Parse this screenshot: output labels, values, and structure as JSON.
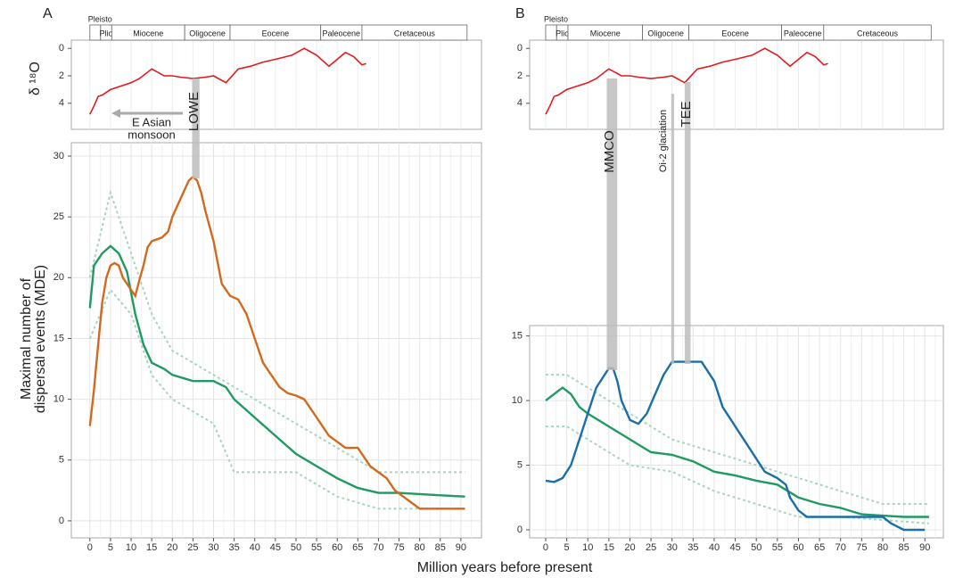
{
  "x_label": "Million years before present",
  "chart_data": [
    {
      "type": "line",
      "label": "A",
      "ylabel": [
        "Maximal number of",
        "dispersal events (MDE)"
      ],
      "xlim": [
        -4.5,
        95
      ],
      "ylim": [
        -1.4,
        31.1
      ],
      "xticks": [
        0,
        5,
        10,
        15,
        20,
        25,
        30,
        35,
        40,
        45,
        50,
        55,
        60,
        65,
        70,
        75,
        80,
        85,
        90
      ],
      "yticks": [
        0,
        5,
        10,
        15,
        20,
        25,
        30
      ],
      "grid": true,
      "series": [
        {
          "color": "#a8d5bf",
          "style": "dashed",
          "x": [
            0,
            5,
            10,
            15,
            20,
            25,
            30,
            40,
            50,
            60,
            70,
            91
          ],
          "values": [
            20,
            27,
            22,
            17,
            14,
            13,
            12,
            10,
            8,
            6,
            4,
            4
          ]
        },
        {
          "color": "#a8d5bf",
          "style": "dashed",
          "x": [
            0,
            5,
            10,
            15,
            20,
            25,
            30,
            35,
            40,
            50,
            60,
            70,
            91
          ],
          "values": [
            15,
            19,
            17,
            12,
            10,
            9,
            8,
            4,
            4,
            4,
            2,
            1,
            1
          ]
        },
        {
          "color": "#1f9a60",
          "style": "solid",
          "x": [
            0,
            1,
            3,
            5,
            7,
            9,
            11,
            13,
            15,
            18,
            20,
            25,
            30,
            33,
            35,
            40,
            45,
            50,
            55,
            60,
            65,
            70,
            75,
            80,
            85,
            91
          ],
          "values": [
            17.5,
            21,
            22,
            22.6,
            22,
            20.5,
            17,
            14.5,
            13,
            12.5,
            12,
            11.5,
            11.5,
            11,
            10,
            8.5,
            7,
            5.5,
            4.5,
            3.5,
            2.7,
            2.3,
            2.3,
            2.2,
            2.1,
            2
          ]
        },
        {
          "color": "#d2691e",
          "style": "solid",
          "x": [
            0,
            1,
            2,
            3,
            4,
            5,
            6,
            7,
            8,
            9,
            10,
            11,
            12,
            13,
            14,
            15,
            17.5,
            19,
            20,
            22,
            24,
            25,
            26,
            27,
            28,
            30,
            32,
            33,
            34,
            36,
            38,
            40,
            42,
            44,
            46,
            48,
            50,
            52,
            54,
            56,
            58,
            60,
            62,
            65,
            66,
            68,
            70,
            72,
            74,
            76,
            78,
            80,
            85,
            91
          ],
          "values": [
            7.8,
            10.8,
            14.5,
            18,
            20,
            21,
            21.2,
            21,
            20,
            19.5,
            19,
            18.5,
            19.8,
            21,
            22.5,
            23,
            23.3,
            23.8,
            25,
            26.5,
            28,
            28.3,
            28,
            27,
            25.5,
            23,
            19.5,
            19,
            18.5,
            18.2,
            17,
            15,
            13,
            12,
            11,
            10.5,
            10.3,
            10,
            9,
            8,
            7,
            6.5,
            6,
            6,
            5.5,
            4.5,
            4,
            3.5,
            2.5,
            2,
            1.5,
            1,
            1,
            1
          ]
        }
      ],
      "annotations": [
        {
          "text": "LOWE",
          "x": [
            24.8,
            26.6
          ]
        },
        {
          "text": [
            "E Asian",
            "monsoon"
          ]
        }
      ],
      "inset": {
        "type": "line",
        "ylabel": "δ ¹⁸O",
        "ylim": [
          -0.6,
          5.9
        ],
        "inverted": true,
        "yticks": [
          0,
          2,
          4
        ],
        "grid": true,
        "series": [
          {
            "color": "#e31a1c",
            "x": [
              0,
              1,
              2,
              3,
              5,
              7,
              10,
              12,
              15,
              18,
              20,
              22,
              25,
              28,
              30,
              33,
              36,
              39,
              42,
              45,
              49,
              52,
              55,
              58,
              60,
              62,
              64,
              66,
              67
            ],
            "values": [
              4.8,
              4.2,
              3.5,
              3.4,
              3,
              2.8,
              2.5,
              2.2,
              1.5,
              2,
              2,
              2.1,
              2.2,
              2.1,
              2,
              2.5,
              1.5,
              1.3,
              1,
              0.8,
              0.5,
              0,
              0.5,
              1.3,
              0.8,
              0.3,
              0.6,
              1.2,
              1.1
            ]
          }
        ],
        "epochs": [
          {
            "label": "Pleisto",
            "start": 0,
            "end": 2.6
          },
          {
            "label": "Plio",
            "start": 2.6,
            "end": 5.3
          },
          {
            "label": "Miocene",
            "start": 5.3,
            "end": 23
          },
          {
            "label": "Oligocene",
            "start": 23,
            "end": 34
          },
          {
            "label": "Eocene",
            "start": 34,
            "end": 56
          },
          {
            "label": "Paleocene",
            "start": 56,
            "end": 66
          },
          {
            "label": "Cretaceous",
            "start": 66,
            "end": 91.5
          }
        ]
      }
    },
    {
      "type": "line",
      "label": "B",
      "xlim": [
        -3.8,
        94.4
      ],
      "ylim": [
        -0.62,
        15.8
      ],
      "xticks": [
        0,
        5,
        10,
        15,
        20,
        25,
        30,
        35,
        40,
        45,
        50,
        55,
        60,
        65,
        70,
        75,
        80,
        85,
        90
      ],
      "yticks": [
        0,
        5,
        10,
        15
      ],
      "grid": true,
      "series": [
        {
          "color": "#a8d5bf",
          "style": "dashed",
          "x": [
            0,
            5,
            10,
            20,
            30,
            40,
            50,
            60,
            70,
            80,
            91
          ],
          "values": [
            12,
            12,
            11,
            9,
            7,
            6,
            5,
            4,
            3,
            2,
            2
          ]
        },
        {
          "color": "#a8d5bf",
          "style": "dashed",
          "x": [
            0,
            5,
            10,
            20,
            30,
            40,
            50,
            60,
            70,
            91
          ],
          "values": [
            8,
            8,
            7,
            5,
            4.5,
            3,
            2,
            1,
            1,
            0.5
          ]
        },
        {
          "color": "#1f9a60",
          "style": "solid",
          "x": [
            0,
            2,
            4,
            6,
            8,
            10,
            15,
            20,
            25,
            30,
            35,
            40,
            45,
            50,
            55,
            60,
            65,
            70,
            75,
            80,
            85,
            91
          ],
          "values": [
            10,
            10.5,
            11,
            10.5,
            9.5,
            9,
            8,
            7,
            6,
            5.8,
            5.3,
            4.5,
            4.2,
            3.8,
            3.5,
            2.5,
            2,
            1.7,
            1.2,
            1.1,
            1,
            1
          ]
        },
        {
          "color": "#1a6fa8",
          "style": "solid",
          "x": [
            0,
            2,
            4,
            6,
            8,
            10,
            12,
            14,
            15,
            16,
            17,
            18,
            20,
            22,
            24,
            26,
            28,
            30,
            32,
            35,
            37,
            38,
            40,
            42,
            44,
            46,
            48,
            50,
            52,
            55,
            57,
            58,
            60,
            62,
            70,
            80,
            82,
            85,
            90
          ],
          "values": [
            3.8,
            3.7,
            4,
            5,
            7,
            9,
            11,
            12,
            12.5,
            12.5,
            11.5,
            10,
            8.5,
            8.2,
            9,
            10.5,
            12,
            13,
            13,
            13,
            13,
            12.5,
            11.5,
            9.5,
            8.5,
            7.5,
            6.5,
            5.5,
            4.5,
            4,
            3.5,
            2.5,
            1.5,
            1,
            1,
            1,
            0.5,
            0,
            0
          ]
        }
      ],
      "annotations": [
        {
          "text": "MMCO",
          "x": [
            14.5,
            17
          ]
        },
        {
          "text": "Oi-2 glaciation",
          "x": [
            29.8,
            30.5
          ]
        },
        {
          "text": "TEE",
          "x": [
            33,
            34.4
          ]
        }
      ],
      "inset": {
        "type": "line",
        "ylim": [
          -0.6,
          5.9
        ],
        "inverted": true,
        "yticks": [
          0,
          2,
          4
        ],
        "grid": true,
        "series": [
          {
            "color": "#e31a1c",
            "x": [
              0,
              1,
              2,
              3,
              5,
              7,
              10,
              12,
              15,
              18,
              20,
              22,
              25,
              28,
              30,
              33,
              36,
              39,
              42,
              45,
              49,
              52,
              55,
              58,
              60,
              62,
              64,
              66,
              67
            ],
            "values": [
              4.8,
              4.2,
              3.5,
              3.4,
              3,
              2.8,
              2.5,
              2.2,
              1.5,
              2,
              2,
              2.1,
              2.2,
              2.1,
              2,
              2.5,
              1.5,
              1.3,
              1,
              0.8,
              0.5,
              0,
              0.5,
              1.3,
              0.8,
              0.3,
              0.6,
              1.2,
              1.1
            ]
          }
        ],
        "epochs": [
          {
            "label": "Pleisto",
            "start": 0,
            "end": 2.6
          },
          {
            "label": "Plio",
            "start": 2.6,
            "end": 5.3
          },
          {
            "label": "Miocene",
            "start": 5.3,
            "end": 23
          },
          {
            "label": "Oligocene",
            "start": 23,
            "end": 34
          },
          {
            "label": "Eocene",
            "start": 34,
            "end": 56
          },
          {
            "label": "Paleocene",
            "start": 56,
            "end": 66
          },
          {
            "label": "Cretaceous",
            "start": 66,
            "end": 91.5
          }
        ]
      }
    }
  ]
}
